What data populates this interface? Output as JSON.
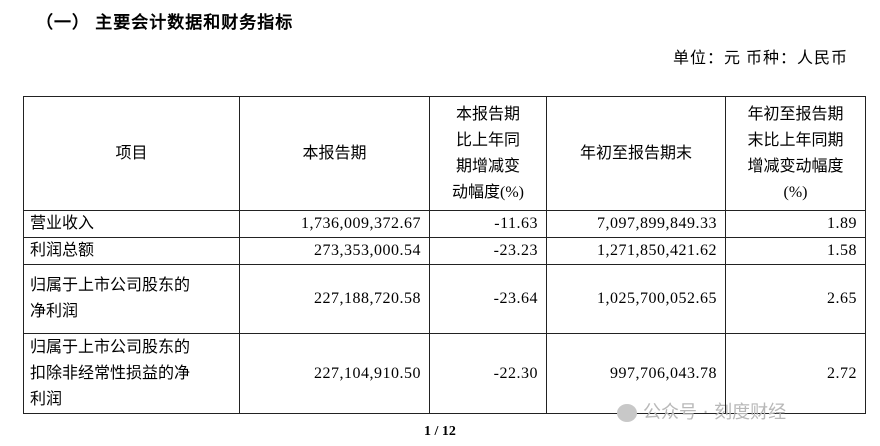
{
  "title": "（一）  主要会计数据和财务指标",
  "unit": "单位：元   币种：人民币",
  "table": {
    "headers": [
      {
        "lines": [
          "项目"
        ]
      },
      {
        "lines": [
          "本报告期"
        ]
      },
      {
        "lines": [
          "本报告期",
          "比上年同",
          "期增减变",
          "动幅度(%)"
        ]
      },
      {
        "lines": [
          "年初至报告期末"
        ]
      },
      {
        "lines": [
          "年初至报告期",
          "末比上年同期",
          "增减变动幅度",
          "(%)"
        ]
      }
    ],
    "rows": [
      {
        "item": [
          "营业收入"
        ],
        "current": "1,736,009,372.67",
        "current_change": "-11.63",
        "ytd": "7,097,899,849.33",
        "ytd_change": "1.89"
      },
      {
        "item": [
          "利润总额"
        ],
        "current": "273,353,000.54",
        "current_change": "-23.23",
        "ytd": "1,271,850,421.62",
        "ytd_change": "1.58"
      },
      {
        "item": [
          "归属于上市公司股东的",
          "净利润"
        ],
        "current": "227,188,720.58",
        "current_change": "-23.64",
        "ytd": "1,025,700,052.65",
        "ytd_change": "2.65"
      },
      {
        "item": [
          "归属于上市公司股东的",
          "扣除非经常性损益的净",
          "利润"
        ],
        "current": "227,104,910.50",
        "current_change": "-22.30",
        "ytd": "997,706,043.78",
        "ytd_change": "2.72"
      }
    ]
  },
  "watermark": "公众号 · 刻度财经",
  "page": "1 / 12"
}
